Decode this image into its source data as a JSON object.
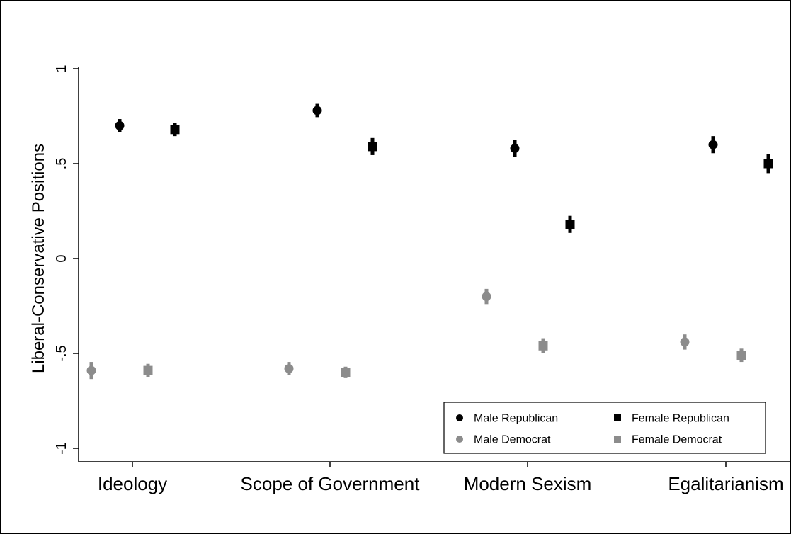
{
  "chart_data": {
    "type": "scatter",
    "ylabel": "Liberal-Conservative Positions",
    "ylim": [
      -1.05,
      1.05
    ],
    "yticks": [
      {
        "value": 1,
        "label": "1"
      },
      {
        "value": 0.5,
        "label": ".5"
      },
      {
        "value": 0,
        "label": "0"
      },
      {
        "value": -0.5,
        "label": "-.5"
      },
      {
        "value": -1,
        "label": "-1"
      }
    ],
    "categories": [
      "Ideology",
      "Scope of Government",
      "Modern Sexism",
      "Egalitarianism"
    ],
    "grid": false,
    "legend_position": "bottom-right",
    "series": [
      {
        "name": "Male Republican",
        "marker": "circle",
        "color": "#000000",
        "values": [
          0.7,
          0.78,
          0.58,
          0.6
        ],
        "ci": [
          0.035,
          0.035,
          0.045,
          0.045
        ]
      },
      {
        "name": "Female Republican",
        "marker": "square",
        "color": "#000000",
        "values": [
          0.68,
          0.59,
          0.18,
          0.5
        ],
        "ci": [
          0.035,
          0.045,
          0.045,
          0.05
        ]
      },
      {
        "name": "Male Democrat",
        "marker": "circle",
        "color": "#8c8c8c",
        "values": [
          -0.59,
          -0.58,
          -0.2,
          -0.44
        ],
        "ci": [
          0.045,
          0.035,
          0.04,
          0.04
        ]
      },
      {
        "name": "Female Democrat",
        "marker": "square",
        "color": "#8c8c8c",
        "values": [
          -0.59,
          -0.6,
          -0.46,
          -0.51
        ],
        "ci": [
          0.035,
          0.03,
          0.04,
          0.035
        ]
      }
    ]
  }
}
